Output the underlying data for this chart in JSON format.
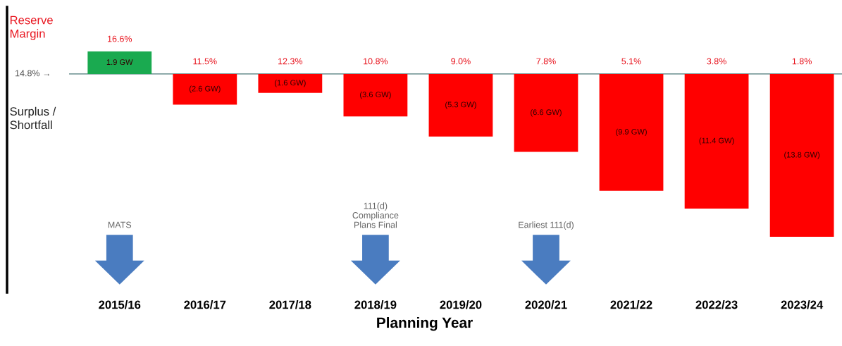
{
  "chart_data": {
    "type": "bar",
    "xlabel": "Planning Year",
    "categories": [
      "2015/16",
      "2016/17",
      "2017/18",
      "2018/19",
      "2019/20",
      "2020/21",
      "2021/22",
      "2022/23",
      "2023/24"
    ],
    "values": [
      1.9,
      -2.6,
      -1.6,
      -3.6,
      -5.3,
      -6.6,
      -9.9,
      -11.4,
      -13.8
    ],
    "colors": [
      "#1aaa50",
      "#ff0000",
      "#ff0000",
      "#ff0000",
      "#ff0000",
      "#ff0000",
      "#ff0000",
      "#ff0000",
      "#ff0000"
    ],
    "value_labels": [
      "1.9 GW",
      "(2.6 GW)",
      "(1.6 GW)",
      "(3.6 GW)",
      "(5.3 GW)",
      "(6.6 GW)",
      "(9.9 GW)",
      "(11.4 GW)",
      "(13.8 GW)"
    ],
    "tick_labels": "x",
    "grid": false,
    "ref_lines": [
      {
        "axis": "y",
        "value": 0,
        "label": "14.8% →",
        "color": "#7f9f9f"
      }
    ],
    "annotations": [
      "Reserve Margin",
      "Surplus / Shortfall",
      {
        "text": "16.6%",
        "x": "2015/16",
        "y": 1.9
      },
      {
        "text": "11.5%",
        "x": "2016/17",
        "y": 0
      },
      {
        "text": "12.3%",
        "x": "2017/18",
        "y": 0
      },
      {
        "text": "10.8%",
        "x": "2018/19",
        "y": 0
      },
      {
        "text": "9.0%",
        "x": "2019/20",
        "y": 0
      },
      {
        "text": "7.8%",
        "x": "2020/21",
        "y": 0
      },
      {
        "text": "5.1%",
        "x": "2021/22",
        "y": 0
      },
      {
        "text": "3.8%",
        "x": "2022/23",
        "y": 0
      },
      {
        "text": "1.8%",
        "x": "2023/24",
        "y": 0
      },
      "MATS",
      "111(d)\nCompliance\nPlans Final",
      "Earliest 111(d)"
    ]
  }
}
